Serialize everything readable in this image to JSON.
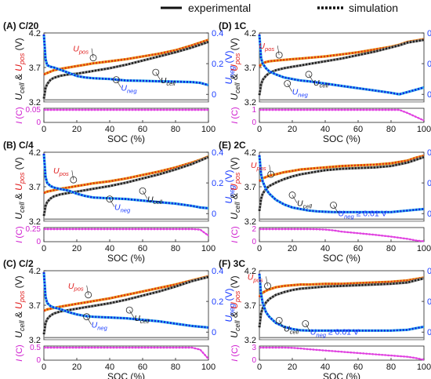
{
  "legend": {
    "experimental": "experimental",
    "simulation": "simulation"
  },
  "colors": {
    "cell_exp": "#4a4a4a",
    "cell_sim": "#1a1a1a",
    "pos_exp": "#e8a020",
    "pos_sim": "#e03010",
    "neg_exp": "#30b0e8",
    "neg_sim": "#1020e0",
    "current": "#e040e0",
    "neg_axis": "#1a3cff",
    "pos_label": "#e02020",
    "current_label": "#d020d0"
  },
  "chart_data": [
    {
      "type": "line",
      "panel_label": "(A) C/20",
      "xlabel": "SOC (%)",
      "xlim": [
        0,
        100
      ],
      "xticks": [
        "0",
        "20",
        "40",
        "60",
        "80",
        "100"
      ],
      "ylim_voltage": [
        3.2,
        4.2
      ],
      "yticks_voltage": [
        "3.2",
        "3.7",
        "4.2"
      ],
      "ylim_neg": [
        -0.05,
        0.4
      ],
      "yticks_neg": [
        "0",
        "0.2",
        "0.4"
      ],
      "ylim_current": [
        0,
        0.05
      ],
      "yticks_current": [
        "0",
        "0.05"
      ],
      "ylabel_left": "U_cell & U_pos (V)",
      "ylabel_right": "U_neg (V)",
      "ylabel_current": "I (C)",
      "annotations": [
        {
          "text": "U_pos",
          "x": 30,
          "y": 3.84
        },
        {
          "text": "U_cell",
          "x": 68,
          "y": 3.63
        },
        {
          "text": "U_neg",
          "x": 44,
          "y": 0.095
        }
      ],
      "series": {
        "x": [
          0,
          1,
          2,
          4,
          6,
          10,
          15,
          20,
          25,
          30,
          40,
          50,
          60,
          70,
          80,
          90,
          95,
          100
        ],
        "U_pos": [
          3.6,
          3.61,
          3.62,
          3.64,
          3.66,
          3.68,
          3.7,
          3.72,
          3.74,
          3.76,
          3.79,
          3.82,
          3.86,
          3.9,
          3.95,
          4.02,
          4.06,
          4.1
        ],
        "U_cell": [
          3.25,
          3.4,
          3.46,
          3.52,
          3.55,
          3.58,
          3.6,
          3.61,
          3.63,
          3.65,
          3.69,
          3.74,
          3.8,
          3.86,
          3.92,
          3.99,
          4.03,
          4.07
        ],
        "U_neg": [
          0.39,
          0.23,
          0.19,
          0.18,
          0.175,
          0.16,
          0.14,
          0.12,
          0.11,
          0.105,
          0.1,
          0.09,
          0.088,
          0.085,
          0.083,
          0.08,
          0.075,
          0.06
        ],
        "I": [
          0.05,
          0.05,
          0.05,
          0.05,
          0.05,
          0.05,
          0.05,
          0.05,
          0.05,
          0.05,
          0.05,
          0.05,
          0.05,
          0.05,
          0.05,
          0.05,
          0.05,
          0.05
        ]
      }
    },
    {
      "type": "line",
      "panel_label": "(B) C/4",
      "xlabel": "SOC (%)",
      "xlim": [
        0,
        100
      ],
      "xticks": [
        "0",
        "20",
        "40",
        "60",
        "80",
        "100"
      ],
      "ylim_voltage": [
        3.2,
        4.2
      ],
      "yticks_voltage": [
        "3.2",
        "3.7",
        "4.2"
      ],
      "ylim_neg": [
        -0.05,
        0.4
      ],
      "yticks_neg": [
        "0",
        "0.2",
        "0.4"
      ],
      "ylim_current": [
        0,
        0.25
      ],
      "yticks_current": [
        "0",
        "0.25"
      ],
      "ylabel_left": "U_cell & U_pos (V)",
      "ylabel_right": "U_neg (V)",
      "ylabel_current": "I (C)",
      "annotations": [
        {
          "text": "U_pos",
          "x": 18,
          "y": 3.8
        },
        {
          "text": "U_cell",
          "x": 60,
          "y": 3.64
        },
        {
          "text": "U_neg",
          "x": 40,
          "y": 0.095
        }
      ],
      "series": {
        "x": [
          0,
          1,
          2,
          4,
          6,
          10,
          15,
          20,
          25,
          30,
          40,
          50,
          60,
          70,
          80,
          90,
          95,
          100
        ],
        "U_pos": [
          3.61,
          3.62,
          3.63,
          3.64,
          3.65,
          3.67,
          3.69,
          3.71,
          3.73,
          3.75,
          3.78,
          3.82,
          3.87,
          3.92,
          3.98,
          4.05,
          4.09,
          4.14
        ],
        "U_cell": [
          3.28,
          3.42,
          3.48,
          3.53,
          3.56,
          3.59,
          3.61,
          3.63,
          3.65,
          3.67,
          3.71,
          3.76,
          3.82,
          3.88,
          3.95,
          4.03,
          4.08,
          4.13
        ],
        "U_neg": [
          0.39,
          0.24,
          0.2,
          0.18,
          0.17,
          0.16,
          0.15,
          0.13,
          0.115,
          0.105,
          0.1,
          0.095,
          0.085,
          0.075,
          0.065,
          0.05,
          0.04,
          0.035
        ],
        "I": [
          0.25,
          0.25,
          0.25,
          0.25,
          0.25,
          0.25,
          0.25,
          0.25,
          0.25,
          0.25,
          0.25,
          0.25,
          0.25,
          0.25,
          0.25,
          0.25,
          0.24,
          0.12
        ]
      }
    },
    {
      "type": "line",
      "panel_label": "(C) C/2",
      "xlabel": "SOC (%)",
      "xlim": [
        0,
        100
      ],
      "xticks": [
        "0",
        "20",
        "40",
        "60",
        "80",
        "100"
      ],
      "ylim_voltage": [
        3.2,
        4.2
      ],
      "yticks_voltage": [
        "3.2",
        "3.7",
        "4.2"
      ],
      "ylim_neg": [
        -0.05,
        0.4
      ],
      "yticks_neg": [
        "0",
        "0.2",
        "0.4"
      ],
      "ylim_current": [
        0,
        0.5
      ],
      "yticks_current": [
        "0",
        "0.5"
      ],
      "ylabel_left": "U_cell & U_pos (V)",
      "ylabel_right": "U_neg (V)",
      "ylabel_current": "I (C)",
      "annotations": [
        {
          "text": "U_pos",
          "x": 27,
          "y": 3.85
        },
        {
          "text": "U_cell",
          "x": 52,
          "y": 3.63
        },
        {
          "text": "U_neg",
          "x": 26,
          "y": 0.1
        }
      ],
      "series": {
        "x": [
          0,
          1,
          2,
          4,
          6,
          10,
          15,
          20,
          25,
          30,
          40,
          50,
          60,
          70,
          80,
          90,
          95,
          100
        ],
        "U_pos": [
          3.62,
          3.63,
          3.64,
          3.65,
          3.66,
          3.68,
          3.7,
          3.72,
          3.74,
          3.76,
          3.8,
          3.85,
          3.9,
          3.95,
          4.0,
          4.06,
          4.09,
          4.12
        ],
        "U_cell": [
          3.28,
          3.44,
          3.5,
          3.55,
          3.58,
          3.61,
          3.63,
          3.65,
          3.67,
          3.69,
          3.73,
          3.78,
          3.84,
          3.9,
          3.97,
          4.05,
          4.08,
          4.11
        ],
        "U_neg": [
          0.39,
          0.23,
          0.19,
          0.17,
          0.16,
          0.15,
          0.13,
          0.115,
          0.105,
          0.1,
          0.095,
          0.09,
          0.08,
          0.07,
          0.055,
          0.04,
          0.035,
          0.03
        ],
        "I": [
          0.5,
          0.5,
          0.5,
          0.5,
          0.5,
          0.5,
          0.5,
          0.5,
          0.5,
          0.5,
          0.5,
          0.5,
          0.5,
          0.5,
          0.5,
          0.5,
          0.42,
          0.05
        ]
      }
    },
    {
      "type": "line",
      "panel_label": "(D) 1C",
      "xlabel": "SOC (%)",
      "xlim": [
        0,
        100
      ],
      "xticks": [
        "0",
        "20",
        "40",
        "60",
        "80",
        "100"
      ],
      "ylim_voltage": [
        3.2,
        4.2
      ],
      "yticks_voltage": [
        "3.2",
        "3.7",
        "4.2"
      ],
      "ylim_neg": [
        -0.05,
        0.4
      ],
      "yticks_neg": [
        "0",
        "0.2",
        "0.4"
      ],
      "ylim_current": [
        0,
        1
      ],
      "yticks_current": [
        "0",
        "1"
      ],
      "ylabel_left": "U_cell & U_pos (V)",
      "ylabel_right": "U_neg (V)",
      "ylabel_current": "I (C)",
      "annotations": [
        {
          "text": "U_pos",
          "x": 12,
          "y": 3.88
        },
        {
          "text": "U_cell",
          "x": 30,
          "y": 3.6
        },
        {
          "text": "U_neg",
          "x": 17,
          "y": 0.07
        }
      ],
      "series": {
        "x": [
          0,
          1,
          2,
          4,
          6,
          10,
          15,
          20,
          25,
          30,
          40,
          50,
          60,
          70,
          80,
          85,
          90,
          95,
          100
        ],
        "U_pos": [
          3.72,
          3.74,
          3.76,
          3.78,
          3.79,
          3.8,
          3.81,
          3.82,
          3.83,
          3.84,
          3.86,
          3.89,
          3.92,
          3.96,
          4.0,
          4.03,
          4.07,
          4.09,
          4.11
        ],
        "U_cell": [
          3.3,
          3.45,
          3.52,
          3.58,
          3.62,
          3.66,
          3.69,
          3.71,
          3.73,
          3.75,
          3.79,
          3.83,
          3.88,
          3.93,
          3.99,
          4.02,
          4.06,
          4.08,
          4.1
        ],
        "U_neg": [
          0.39,
          0.24,
          0.2,
          0.17,
          0.15,
          0.13,
          0.11,
          0.1,
          0.09,
          0.085,
          0.07,
          0.055,
          0.04,
          0.025,
          0.01,
          0.0,
          0.015,
          0.03,
          0.045
        ],
        "I": [
          1,
          1,
          1,
          1,
          1,
          1,
          1,
          1,
          1,
          1,
          1,
          1,
          1,
          1,
          1,
          1,
          0.75,
          0.45,
          0.15
        ]
      }
    },
    {
      "type": "line",
      "panel_label": "(E) 2C",
      "xlabel": "SOC (%)",
      "xlim": [
        0,
        100
      ],
      "xticks": [
        "0",
        "20",
        "40",
        "60",
        "80",
        "100"
      ],
      "ylim_voltage": [
        3.2,
        4.2
      ],
      "yticks_voltage": [
        "3.2",
        "3.7",
        "4.2"
      ],
      "ylim_neg": [
        -0.05,
        0.4
      ],
      "yticks_neg": [
        "0",
        "0.2",
        "0.4"
      ],
      "ylim_current": [
        0,
        2
      ],
      "yticks_current": [
        "0",
        "2"
      ],
      "ylabel_left": "U_cell & U_pos (V)",
      "ylabel_right": "U_neg (V)",
      "ylabel_current": "I (C)",
      "annotations": [
        {
          "text": "U_pos",
          "x": 7,
          "y": 3.88
        },
        {
          "text": "U_cell",
          "x": 20,
          "y": 3.58
        },
        {
          "text": "U_neg ≥ 0.01 V",
          "x": 45,
          "y": 0.055
        }
      ],
      "series": {
        "x": [
          0,
          1,
          2,
          4,
          6,
          10,
          15,
          20,
          25,
          30,
          35,
          40,
          45,
          50,
          60,
          70,
          80,
          90,
          95,
          100
        ],
        "U_pos": [
          3.78,
          3.8,
          3.82,
          3.84,
          3.86,
          3.88,
          3.91,
          3.93,
          3.95,
          3.96,
          3.97,
          3.98,
          3.99,
          4.0,
          4.01,
          4.02,
          4.04,
          4.08,
          4.12,
          4.15
        ],
        "U_cell": [
          3.35,
          3.52,
          3.6,
          3.67,
          3.71,
          3.76,
          3.81,
          3.85,
          3.88,
          3.9,
          3.92,
          3.94,
          3.95,
          3.96,
          3.97,
          3.98,
          4.0,
          4.05,
          4.09,
          4.13
        ],
        "U_neg": [
          0.38,
          0.26,
          0.21,
          0.16,
          0.13,
          0.09,
          0.06,
          0.04,
          0.03,
          0.02,
          0.015,
          0.012,
          0.01,
          0.01,
          0.01,
          0.01,
          0.01,
          0.02,
          0.025,
          0.03
        ],
        "I": [
          2,
          2,
          2,
          2,
          2,
          2,
          2,
          2,
          2,
          2,
          1.97,
          1.92,
          1.8,
          1.6,
          1.35,
          1.1,
          0.8,
          0.45,
          0.2,
          0.05
        ]
      }
    },
    {
      "type": "line",
      "panel_label": "(F) 3C",
      "xlabel": "SOC (%)",
      "xlim": [
        0,
        100
      ],
      "xticks": [
        "0",
        "20",
        "40",
        "60",
        "80",
        "100"
      ],
      "ylim_voltage": [
        3.2,
        4.2
      ],
      "yticks_voltage": [
        "3.2",
        "3.7",
        "4.2"
      ],
      "ylim_neg": [
        -0.05,
        0.4
      ],
      "yticks_neg": [
        "0",
        "0.2",
        "0.4"
      ],
      "ylim_current": [
        0,
        3
      ],
      "yticks_current": [
        "0",
        "3"
      ],
      "ylabel_left": "U_cell & U_pos (V)",
      "ylabel_right": "U_neg (V)",
      "ylabel_current": "I (C)",
      "annotations": [
        {
          "text": "U_pos",
          "x": 5,
          "y": 3.98
        },
        {
          "text": "U_cell",
          "x": 12,
          "y": 3.48
        },
        {
          "text": "U_neg ≥ 0.01 V",
          "x": 28,
          "y": 0.055
        }
      ],
      "series": {
        "x": [
          0,
          1,
          2,
          4,
          6,
          10,
          15,
          20,
          25,
          30,
          40,
          50,
          60,
          70,
          80,
          90,
          95,
          100
        ],
        "U_pos": [
          3.82,
          3.86,
          3.88,
          3.91,
          3.93,
          3.96,
          3.98,
          3.99,
          4.0,
          4.0,
          4.01,
          4.01,
          4.02,
          4.03,
          4.04,
          4.06,
          4.08,
          4.1
        ],
        "U_cell": [
          3.38,
          3.58,
          3.66,
          3.74,
          3.79,
          3.85,
          3.89,
          3.92,
          3.94,
          3.95,
          3.97,
          3.98,
          3.99,
          4.0,
          4.01,
          4.03,
          4.06,
          4.09
        ],
        "U_neg": [
          0.38,
          0.25,
          0.19,
          0.13,
          0.1,
          0.06,
          0.035,
          0.02,
          0.012,
          0.01,
          0.01,
          0.01,
          0.01,
          0.01,
          0.01,
          0.015,
          0.025,
          0.035
        ],
        "I": [
          3,
          3,
          3,
          3,
          3,
          3,
          3,
          2.95,
          2.8,
          2.6,
          2.3,
          2.0,
          1.7,
          1.4,
          1.1,
          0.8,
          0.5,
          0.1
        ]
      }
    }
  ]
}
